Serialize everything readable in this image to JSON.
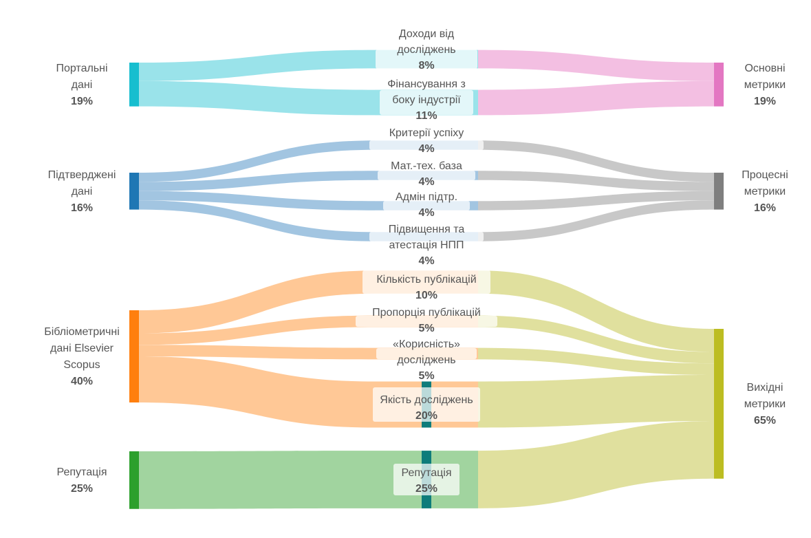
{
  "chart_data": {
    "type": "sankey",
    "unit": "%",
    "sources": [
      {
        "id": "portal",
        "label": [
          "Портальні",
          "дані"
        ],
        "value": 19,
        "color": "#17becf",
        "link_color": "#9ae3ea"
      },
      {
        "id": "verified",
        "label": [
          "Підтверджені",
          "дані"
        ],
        "value": 16,
        "color": "#1f77b4",
        "link_color": "#a2c5e1"
      },
      {
        "id": "biblio",
        "label": [
          "Бібліометричні",
          "дані Elsevier",
          "Scopus"
        ],
        "value": 40,
        "color": "#ff7f0e",
        "link_color": "#ffc896"
      },
      {
        "id": "reputation_src",
        "label": [
          "Репутація"
        ],
        "value": 25,
        "color": "#2ca02c",
        "link_color": "#a1d49f"
      }
    ],
    "indicators": [
      {
        "id": "income",
        "label": [
          "Доходи від",
          "досліджень"
        ],
        "value": 8,
        "source": "portal",
        "target": "core"
      },
      {
        "id": "industry",
        "label": [
          "Фінансування з",
          "боку індустрії"
        ],
        "value": 11,
        "source": "portal",
        "target": "core"
      },
      {
        "id": "success",
        "label": [
          "Критерії успіху"
        ],
        "value": 4,
        "source": "verified",
        "target": "process"
      },
      {
        "id": "base",
        "label": [
          "Мат.-тех. база"
        ],
        "value": 4,
        "source": "verified",
        "target": "process"
      },
      {
        "id": "admin",
        "label": [
          "Адмін підтр."
        ],
        "value": 4,
        "source": "verified",
        "target": "process"
      },
      {
        "id": "staff",
        "label": [
          "Підвищення та",
          "атестація НПП"
        ],
        "value": 4,
        "source": "verified",
        "target": "process"
      },
      {
        "id": "pubcount",
        "label": [
          "Кількість публікацій"
        ],
        "value": 10,
        "source": "biblio",
        "target": "output"
      },
      {
        "id": "pubprop",
        "label": [
          "Пропорція публікацій"
        ],
        "value": 5,
        "source": "biblio",
        "target": "output"
      },
      {
        "id": "usefulness",
        "label": [
          "«Корисність»",
          "досліджень"
        ],
        "value": 5,
        "source": "biblio",
        "target": "output"
      },
      {
        "id": "quality",
        "label": [
          "Якість досліджень"
        ],
        "value": 20,
        "source": "biblio",
        "target": "output"
      },
      {
        "id": "reputation",
        "label": [
          "Репутація"
        ],
        "value": 25,
        "source": "reputation_src",
        "target": "output"
      }
    ],
    "targets": [
      {
        "id": "core",
        "label": [
          "Основні",
          "метрики"
        ],
        "value": 19,
        "color": "#e377c2",
        "link_color": "#f3bfe2"
      },
      {
        "id": "process",
        "label": [
          "Процесні",
          "метрики"
        ],
        "value": 16,
        "color": "#7f7f7f",
        "link_color": "#c8c8c8"
      },
      {
        "id": "output",
        "label": [
          "Вихідні",
          "метрики"
        ],
        "value": 65,
        "color": "#bcbd22",
        "link_color": "#e0e09e"
      }
    ],
    "indicator_node_color": "#0e7c7b"
  }
}
